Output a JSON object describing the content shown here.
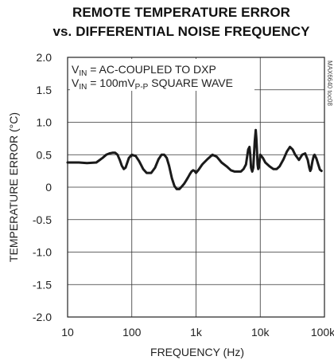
{
  "chart_data": {
    "type": "line",
    "title_line1": "REMOTE TEMPERATURE ERROR",
    "title_line2": "vs. DIFFERENTIAL NOISE FREQUENCY",
    "xlabel": "FREQUENCY (Hz)",
    "ylabel": "TEMPERATURE ERROR (°C)",
    "x_scale": "log",
    "xlim": [
      10,
      100000
    ],
    "ylim": [
      -2.0,
      2.0
    ],
    "grid": true,
    "x_ticks": [
      10,
      100,
      1000,
      10000,
      100000
    ],
    "x_tick_labels": [
      "10",
      "100",
      "1k",
      "10k",
      "100k"
    ],
    "y_ticks": [
      2.0,
      1.5,
      1.0,
      0.5,
      0,
      -0.5,
      -1.0,
      -1.5,
      -2.0
    ],
    "y_tick_labels": [
      "2.0",
      "1.5",
      "1.0",
      "0.5",
      "0",
      "-0.5",
      "-1.0",
      "-1.5",
      "-2.0"
    ],
    "annotations": {
      "line1_main": "V",
      "line1_sub": "IN",
      "line1_rest": " = AC-COUPLED TO DXP",
      "line2_main": "V",
      "line2_sub": "IN",
      "line2_mid": " = 100mV",
      "line2_sub2": "P-P",
      "line2_rest": " SQUARE WAVE",
      "code": "MAX6640 toc08"
    },
    "series": [
      {
        "x": [
          10,
          15,
          20,
          28,
          35,
          40,
          45,
          50,
          55,
          60,
          65,
          70,
          75,
          80,
          90,
          100,
          115,
          130,
          150,
          170,
          200,
          230,
          260,
          290,
          320,
          350,
          380,
          420,
          460,
          500,
          550,
          600,
          650,
          700,
          750,
          800,
          850,
          900,
          950,
          1000,
          1100,
          1250,
          1500,
          1800,
          2100,
          2500,
          3000,
          3500,
          4000,
          4500,
          5000,
          5500,
          6000,
          6500,
          6800,
          7000,
          7200,
          7500,
          7800,
          8000,
          8200,
          8500,
          8700,
          8900,
          9100,
          9300,
          9500,
          9700,
          10000,
          11000,
          12000,
          14000,
          16000,
          18000,
          20000,
          23000,
          26000,
          29000,
          32000,
          35000,
          40000,
          45000,
          50000,
          55000,
          58000,
          60000,
          62000,
          65000,
          68000,
          70000,
          75000,
          80000,
          85000,
          90000
        ],
        "y": [
          0.38,
          0.38,
          0.37,
          0.38,
          0.45,
          0.5,
          0.52,
          0.53,
          0.53,
          0.5,
          0.42,
          0.33,
          0.28,
          0.3,
          0.45,
          0.5,
          0.48,
          0.4,
          0.28,
          0.22,
          0.22,
          0.3,
          0.43,
          0.5,
          0.5,
          0.45,
          0.33,
          0.14,
          0.02,
          -0.03,
          -0.03,
          0.01,
          0.05,
          0.1,
          0.15,
          0.2,
          0.24,
          0.26,
          0.25,
          0.22,
          0.27,
          0.35,
          0.43,
          0.5,
          0.47,
          0.38,
          0.32,
          0.26,
          0.24,
          0.24,
          0.24,
          0.28,
          0.35,
          0.58,
          0.62,
          0.5,
          0.3,
          0.24,
          0.3,
          0.5,
          0.7,
          0.88,
          0.75,
          0.55,
          0.35,
          0.28,
          0.3,
          0.38,
          0.5,
          0.45,
          0.38,
          0.32,
          0.28,
          0.28,
          0.32,
          0.43,
          0.55,
          0.62,
          0.58,
          0.5,
          0.42,
          0.5,
          0.52,
          0.42,
          0.3,
          0.25,
          0.28,
          0.4,
          0.48,
          0.5,
          0.44,
          0.35,
          0.27,
          0.25
        ]
      }
    ]
  }
}
